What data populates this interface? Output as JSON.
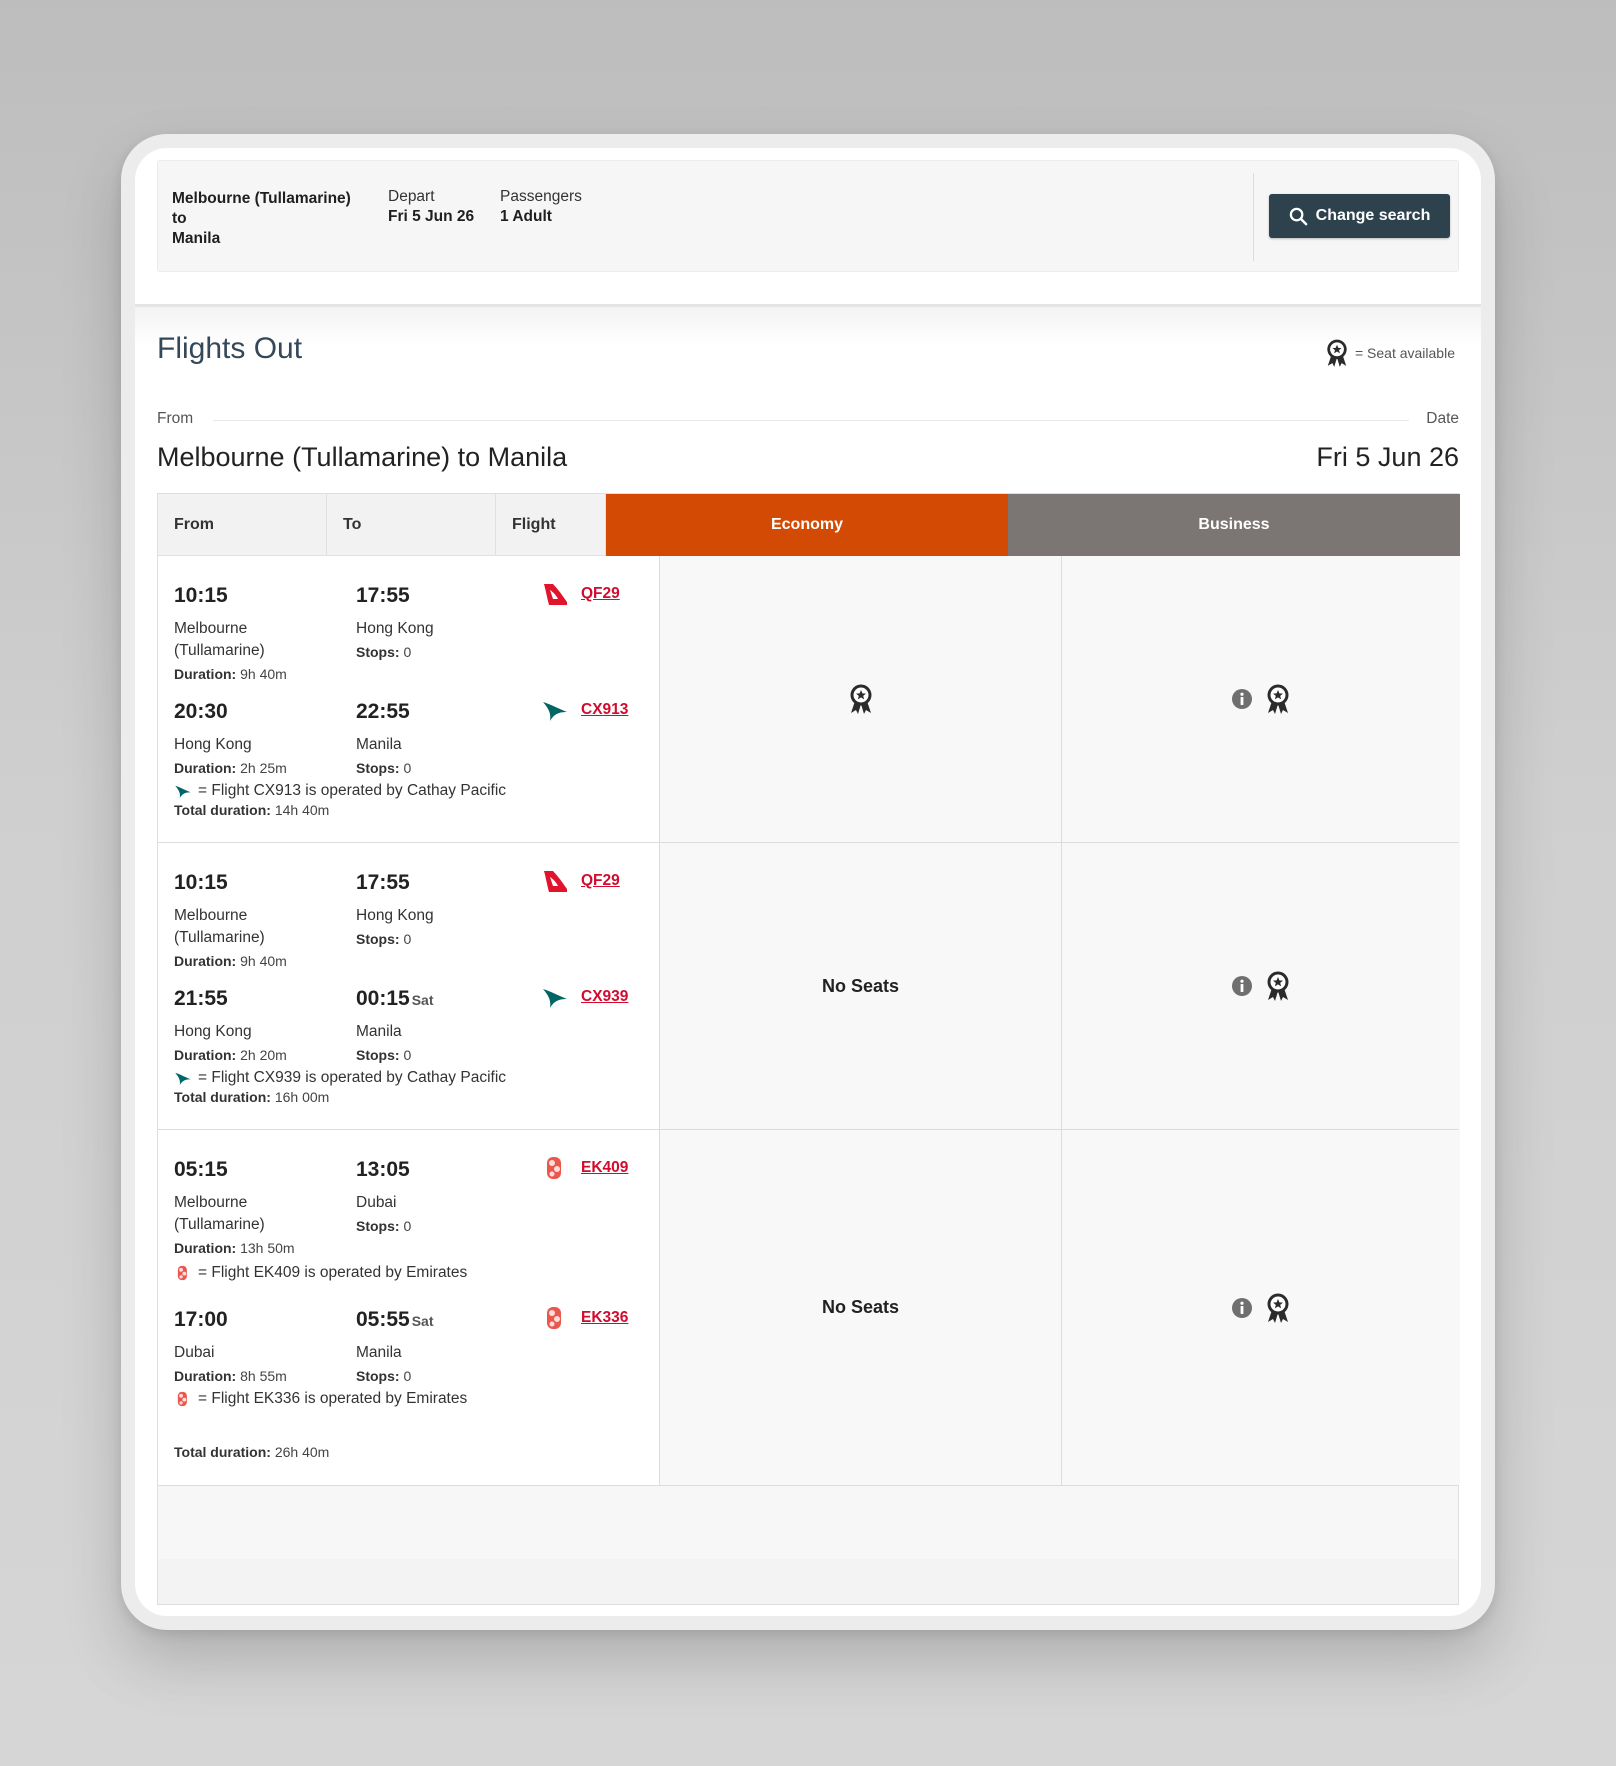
{
  "summary": {
    "route_line1": "Melbourne (Tullamarine)",
    "route_line2": "to",
    "route_line3": "Manila",
    "depart_label": "Depart",
    "depart_value": "Fri 5 Jun 26",
    "passengers_label": "Passengers",
    "passengers_value": "1 Adult",
    "change_search_label": "Change search"
  },
  "section": {
    "title": "Flights Out",
    "legend_text": "= Seat available",
    "from_label": "From",
    "date_label": "Date",
    "route": "Melbourne (Tullamarine) to Manila",
    "date": "Fri 5 Jun 26"
  },
  "table": {
    "headers": {
      "from": "From",
      "to": "To",
      "flight": "Flight",
      "economy": "Economy",
      "business": "Business"
    },
    "duration_label": "Duration:",
    "stops_label": "Stops:",
    "total_duration_label": "Total duration:",
    "rows": [
      {
        "segments": [
          {
            "dep_time": "10:15",
            "dep_place_1": "Melbourne",
            "dep_place_2": "(Tullamarine)",
            "duration": "9h 40m",
            "arr_time": "17:55",
            "arr_day": "",
            "arr_place": "Hong Kong",
            "stops": "0",
            "carrier": "qantas-logo-icon",
            "flight_prefix": "QF",
            "flight_number": "29",
            "operated_by": ""
          },
          {
            "dep_time": "20:30",
            "dep_place_1": "Hong Kong",
            "dep_place_2": "",
            "duration": "2h 25m",
            "arr_time": "22:55",
            "arr_day": "",
            "arr_place": "Manila",
            "stops": "0",
            "carrier": "cathay-logo-icon",
            "flight_prefix": "CX",
            "flight_number": "913",
            "operated_by": "= Flight CX913 is operated by Cathay Pacific"
          }
        ],
        "total_duration": "14h 40m",
        "economy": "award-seat-icon",
        "business": "info-icon award-seat-icon"
      },
      {
        "segments": [
          {
            "dep_time": "10:15",
            "dep_place_1": "Melbourne",
            "dep_place_2": "(Tullamarine)",
            "duration": "9h 40m",
            "arr_time": "17:55",
            "arr_day": "",
            "arr_place": "Hong Kong",
            "stops": "0",
            "carrier": "qantas-logo-icon",
            "flight_prefix": "QF",
            "flight_number": "29",
            "operated_by": ""
          },
          {
            "dep_time": "21:55",
            "dep_place_1": "Hong Kong",
            "dep_place_2": "",
            "duration": "2h 20m",
            "arr_time": "00:15",
            "arr_day": "Sat",
            "arr_place": "Manila",
            "stops": "0",
            "carrier": "cathay-logo-icon",
            "flight_prefix": "CX",
            "flight_number": "939",
            "operated_by": "= Flight CX939 is operated by Cathay Pacific"
          }
        ],
        "total_duration": "16h 00m",
        "economy": "No Seats",
        "business": "info-icon award-seat-icon"
      },
      {
        "segments": [
          {
            "dep_time": "05:15",
            "dep_place_1": "Melbourne",
            "dep_place_2": "(Tullamarine)",
            "duration": "13h 50m",
            "arr_time": "13:05",
            "arr_day": "",
            "arr_place": "Dubai",
            "stops": "0",
            "carrier": "emirates-logo-icon",
            "flight_prefix": "EK",
            "flight_number": "409",
            "operated_by": "= Flight EK409 is operated by Emirates"
          },
          {
            "dep_time": "17:00",
            "dep_place_1": "Dubai",
            "dep_place_2": "",
            "duration": "8h 55m",
            "arr_time": "05:55",
            "arr_day": "Sat",
            "arr_place": "Manila",
            "stops": "0",
            "carrier": "emirates-logo-icon",
            "flight_prefix": "EK",
            "flight_number": "336",
            "operated_by": "= Flight EK336 is operated by Emirates"
          }
        ],
        "total_duration": "26h 40m",
        "economy": "No Seats",
        "business": "info-icon award-seat-icon"
      }
    ]
  },
  "colors": {
    "economy_header": "#d24a04",
    "business_header": "#7b7574",
    "button": "#2e424e",
    "flight_link": "#d10c2e"
  }
}
